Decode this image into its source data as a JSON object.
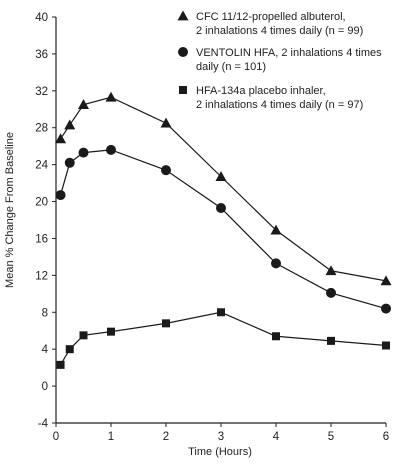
{
  "chart_data": {
    "type": "line",
    "xlabel": "Time (Hours)",
    "ylabel": "Mean % Change From Baseline",
    "xlim": [
      0,
      6
    ],
    "ylim": [
      -4,
      40
    ],
    "xticks": [
      "0",
      "1",
      "2",
      "3",
      "4",
      "5",
      "6"
    ],
    "yticks": [
      "-4",
      "0",
      "4",
      "8",
      "12",
      "16",
      "20",
      "24",
      "28",
      "32",
      "36",
      "40"
    ],
    "grid": false,
    "legend_position": "top-right",
    "series": [
      {
        "name_lines": [
          "CFC 11/12-propelled albuterol,",
          "2 inhalations 4 times daily (n = 99)"
        ],
        "marker": "triangle",
        "color": "#1a1a1a",
        "points": [
          [
            0.083,
            26.8
          ],
          [
            0.25,
            28.3
          ],
          [
            0.5,
            30.5
          ],
          [
            1,
            31.3
          ],
          [
            2,
            28.5
          ],
          [
            3,
            22.7
          ],
          [
            4,
            16.9
          ],
          [
            5,
            12.5
          ],
          [
            6,
            11.4
          ]
        ]
      },
      {
        "name_lines": [
          "VENTOLIN HFA, 2 inhalations 4 times",
          "daily (n = 101)"
        ],
        "marker": "circle",
        "color": "#1a1a1a",
        "points": [
          [
            0.083,
            20.7
          ],
          [
            0.25,
            24.2
          ],
          [
            0.5,
            25.3
          ],
          [
            1,
            25.6
          ],
          [
            2,
            23.4
          ],
          [
            3,
            19.3
          ],
          [
            4,
            13.3
          ],
          [
            5,
            10.1
          ],
          [
            6,
            8.4
          ]
        ]
      },
      {
        "name_lines": [
          "HFA-134a placebo inhaler,",
          "2 inhalations 4 times daily (n = 97)"
        ],
        "marker": "square",
        "color": "#1a1a1a",
        "points": [
          [
            0.083,
            2.3
          ],
          [
            0.25,
            4.0
          ],
          [
            0.5,
            5.5
          ],
          [
            1,
            5.9
          ],
          [
            2,
            6.8
          ],
          [
            3,
            8.0
          ],
          [
            4,
            5.4
          ],
          [
            5,
            4.9
          ],
          [
            6,
            4.4
          ]
        ]
      }
    ]
  }
}
